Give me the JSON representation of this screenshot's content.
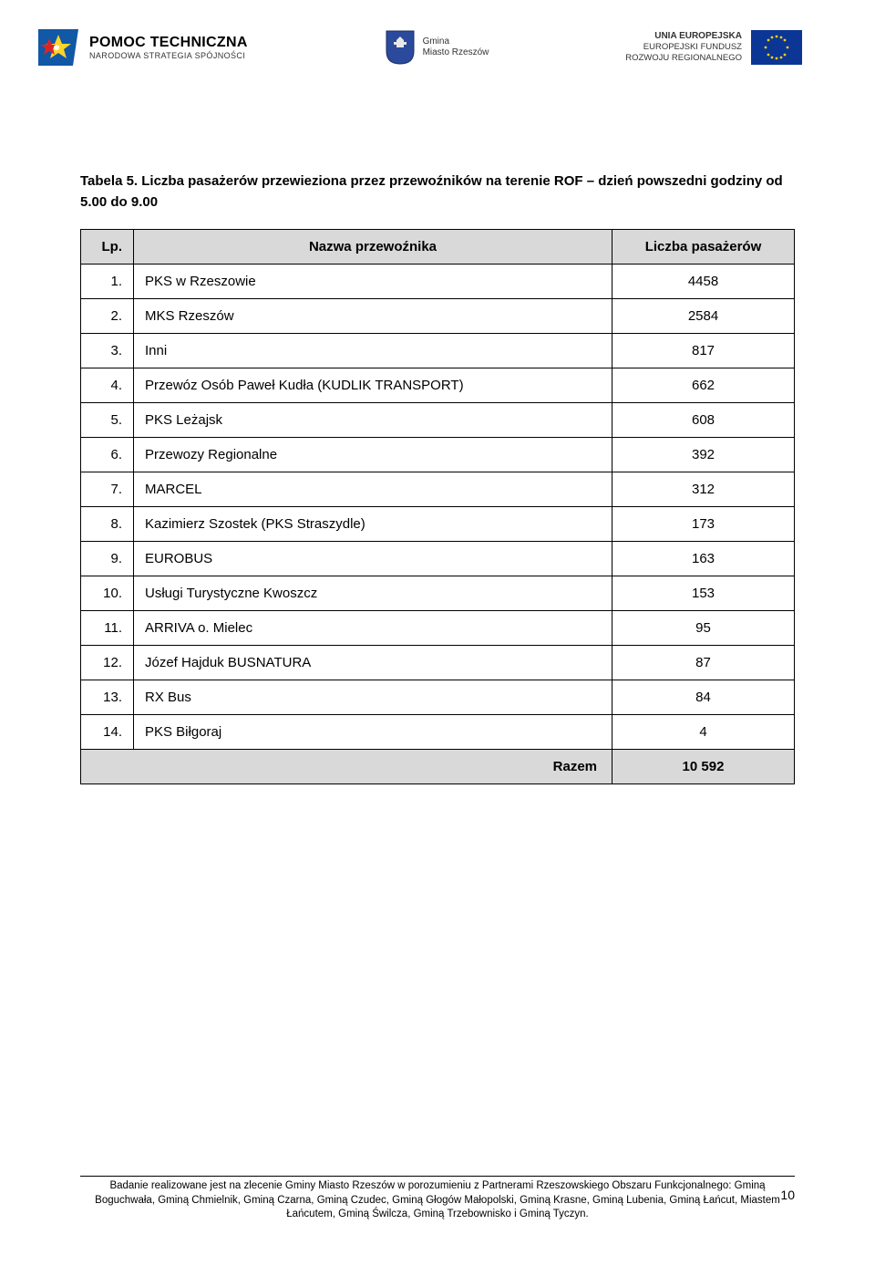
{
  "header": {
    "left_logo": {
      "title": "POMOC TECHNICZNA",
      "subtitle": "NARODOWA STRATEGIA SPÓJNOŚCI"
    },
    "center_logo": {
      "line1": "Gmina",
      "line2": "Miasto Rzeszów"
    },
    "right_logo": {
      "line1": "UNIA EUROPEJSKA",
      "line2": "EUROPEJSKI FUNDUSZ",
      "line3": "ROZWOJU REGIONALNEGO"
    }
  },
  "table": {
    "title": "Tabela 5. Liczba pasażerów przewieziona przez przewoźników na terenie ROF – dzień powszedni godziny od 5.00 do 9.00",
    "columns": {
      "lp": "Lp.",
      "name": "Nazwa przewoźnika",
      "count": "Liczba pasażerów"
    },
    "rows": [
      {
        "lp": "1.",
        "name": "PKS w Rzeszowie",
        "count": "4458"
      },
      {
        "lp": "2.",
        "name": "MKS Rzeszów",
        "count": "2584"
      },
      {
        "lp": "3.",
        "name": "Inni",
        "count": "817"
      },
      {
        "lp": "4.",
        "name": "Przewóz Osób Paweł Kudła (KUDLIK TRANSPORT)",
        "count": "662"
      },
      {
        "lp": "5.",
        "name": "PKS Leżajsk",
        "count": "608"
      },
      {
        "lp": "6.",
        "name": "Przewozy Regionalne",
        "count": "392"
      },
      {
        "lp": "7.",
        "name": "MARCEL",
        "count": "312"
      },
      {
        "lp": "8.",
        "name": "Kazimierz Szostek (PKS Straszydle)",
        "count": "173"
      },
      {
        "lp": "9.",
        "name": "EUROBUS",
        "count": "163"
      },
      {
        "lp": "10.",
        "name": "Usługi Turystyczne Kwoszcz",
        "count": "153"
      },
      {
        "lp": "11.",
        "name": "ARRIVA o. Mielec",
        "count": "95"
      },
      {
        "lp": "12.",
        "name": "Józef Hajduk BUSNATURA",
        "count": "87"
      },
      {
        "lp": "13.",
        "name": "RX Bus",
        "count": "84"
      },
      {
        "lp": "14.",
        "name": "PKS Biłgoraj",
        "count": "4"
      }
    ],
    "total": {
      "label": "Razem",
      "value": "10 592"
    }
  },
  "footer": {
    "text": "Badanie realizowane jest na zlecenie Gminy Miasto Rzeszów w porozumieniu z Partnerami Rzeszowskiego Obszaru Funkcjonalnego: Gminą Boguchwała, Gminą Chmielnik, Gminą Czarna, Gminą Czudec, Gminą Głogów Małopolski, Gminą Krasne, Gminą Lubenia, Gminą Łańcut, Miastem Łańcutem, Gminą Świlcza, Gminą Trzebownisko i Gminą Tyczyn."
  },
  "page_number": "10"
}
